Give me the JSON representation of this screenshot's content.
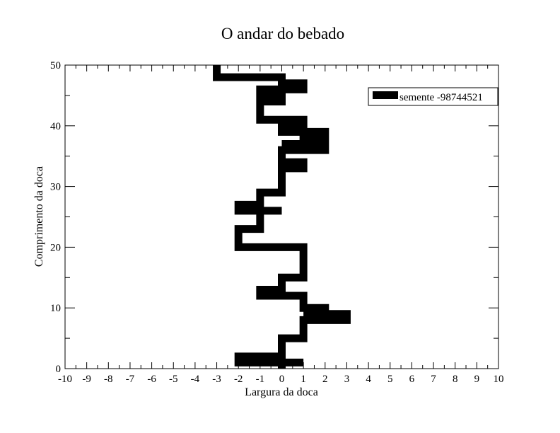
{
  "chart_data": {
    "type": "line",
    "title": "O andar do bebado",
    "xlabel": "Largura da doca",
    "ylabel": "Comprimento da doca",
    "xlim": [
      -10,
      10
    ],
    "ylim": [
      0,
      50
    ],
    "x_ticks": [
      -10,
      -9,
      -8,
      -7,
      -6,
      -5,
      -4,
      -3,
      -2,
      -1,
      0,
      1,
      2,
      3,
      4,
      5,
      6,
      7,
      8,
      9,
      10
    ],
    "x_tick_labels": [
      "-10",
      "-9",
      "-8",
      "-7",
      "-6",
      "-5",
      "-4",
      "-3",
      "-2",
      "-1",
      "0",
      "1",
      "2",
      "3",
      "4",
      "5",
      "6",
      "7",
      "8",
      "9",
      "10"
    ],
    "y_ticks": [
      0,
      10,
      20,
      30,
      40,
      50
    ],
    "y_tick_labels": [
      "0",
      "10",
      "20",
      "30",
      "40",
      "50"
    ],
    "grid": false,
    "legend_position": "top-right",
    "series": [
      {
        "name": "semente -98744521",
        "color": "#000000",
        "points": [
          [
            0,
            0
          ],
          [
            0,
            1
          ],
          [
            1,
            1
          ],
          [
            0,
            1
          ],
          [
            -2,
            1
          ],
          [
            -2,
            2
          ],
          [
            0,
            2
          ],
          [
            0,
            3
          ],
          [
            0,
            4
          ],
          [
            0,
            5
          ],
          [
            1,
            5
          ],
          [
            1,
            6
          ],
          [
            1,
            7
          ],
          [
            1,
            8
          ],
          [
            3,
            8
          ],
          [
            3,
            9
          ],
          [
            1,
            9
          ],
          [
            2,
            9
          ],
          [
            2,
            10
          ],
          [
            1,
            10
          ],
          [
            1,
            11
          ],
          [
            1,
            12
          ],
          [
            0,
            12
          ],
          [
            -1,
            12
          ],
          [
            -1,
            13
          ],
          [
            0,
            13
          ],
          [
            0,
            14
          ],
          [
            0,
            15
          ],
          [
            1,
            15
          ],
          [
            1,
            16
          ],
          [
            1,
            17
          ],
          [
            1,
            18
          ],
          [
            1,
            19
          ],
          [
            1,
            20
          ],
          [
            -2,
            20
          ],
          [
            -2,
            21
          ],
          [
            -2,
            22
          ],
          [
            -2,
            23
          ],
          [
            -1,
            23
          ],
          [
            -1,
            24
          ],
          [
            -1,
            25
          ],
          [
            -1,
            26
          ],
          [
            0,
            26
          ],
          [
            -2,
            26
          ],
          [
            -2,
            27
          ],
          [
            -1,
            27
          ],
          [
            -1,
            28
          ],
          [
            -1,
            29
          ],
          [
            0,
            29
          ],
          [
            0,
            30
          ],
          [
            0,
            31
          ],
          [
            0,
            32
          ],
          [
            0,
            33
          ],
          [
            1,
            33
          ],
          [
            1,
            34
          ],
          [
            0,
            34
          ],
          [
            0,
            35
          ],
          [
            0,
            36
          ],
          [
            2,
            36
          ],
          [
            2,
            37
          ],
          [
            0,
            37
          ],
          [
            1,
            37
          ],
          [
            1,
            38
          ],
          [
            2,
            38
          ],
          [
            2,
            39
          ],
          [
            0,
            39
          ],
          [
            0,
            40
          ],
          [
            1,
            40
          ],
          [
            1,
            41
          ],
          [
            -1,
            41
          ],
          [
            -1,
            42
          ],
          [
            -1,
            43
          ],
          [
            -1,
            44
          ],
          [
            0,
            44
          ],
          [
            0,
            45
          ],
          [
            -1,
            45
          ],
          [
            -1,
            46
          ],
          [
            1,
            46
          ],
          [
            1,
            47
          ],
          [
            0,
            47
          ],
          [
            0,
            48
          ],
          [
            -3,
            48
          ],
          [
            -3,
            49
          ],
          [
            -3,
            50
          ]
        ]
      }
    ]
  }
}
